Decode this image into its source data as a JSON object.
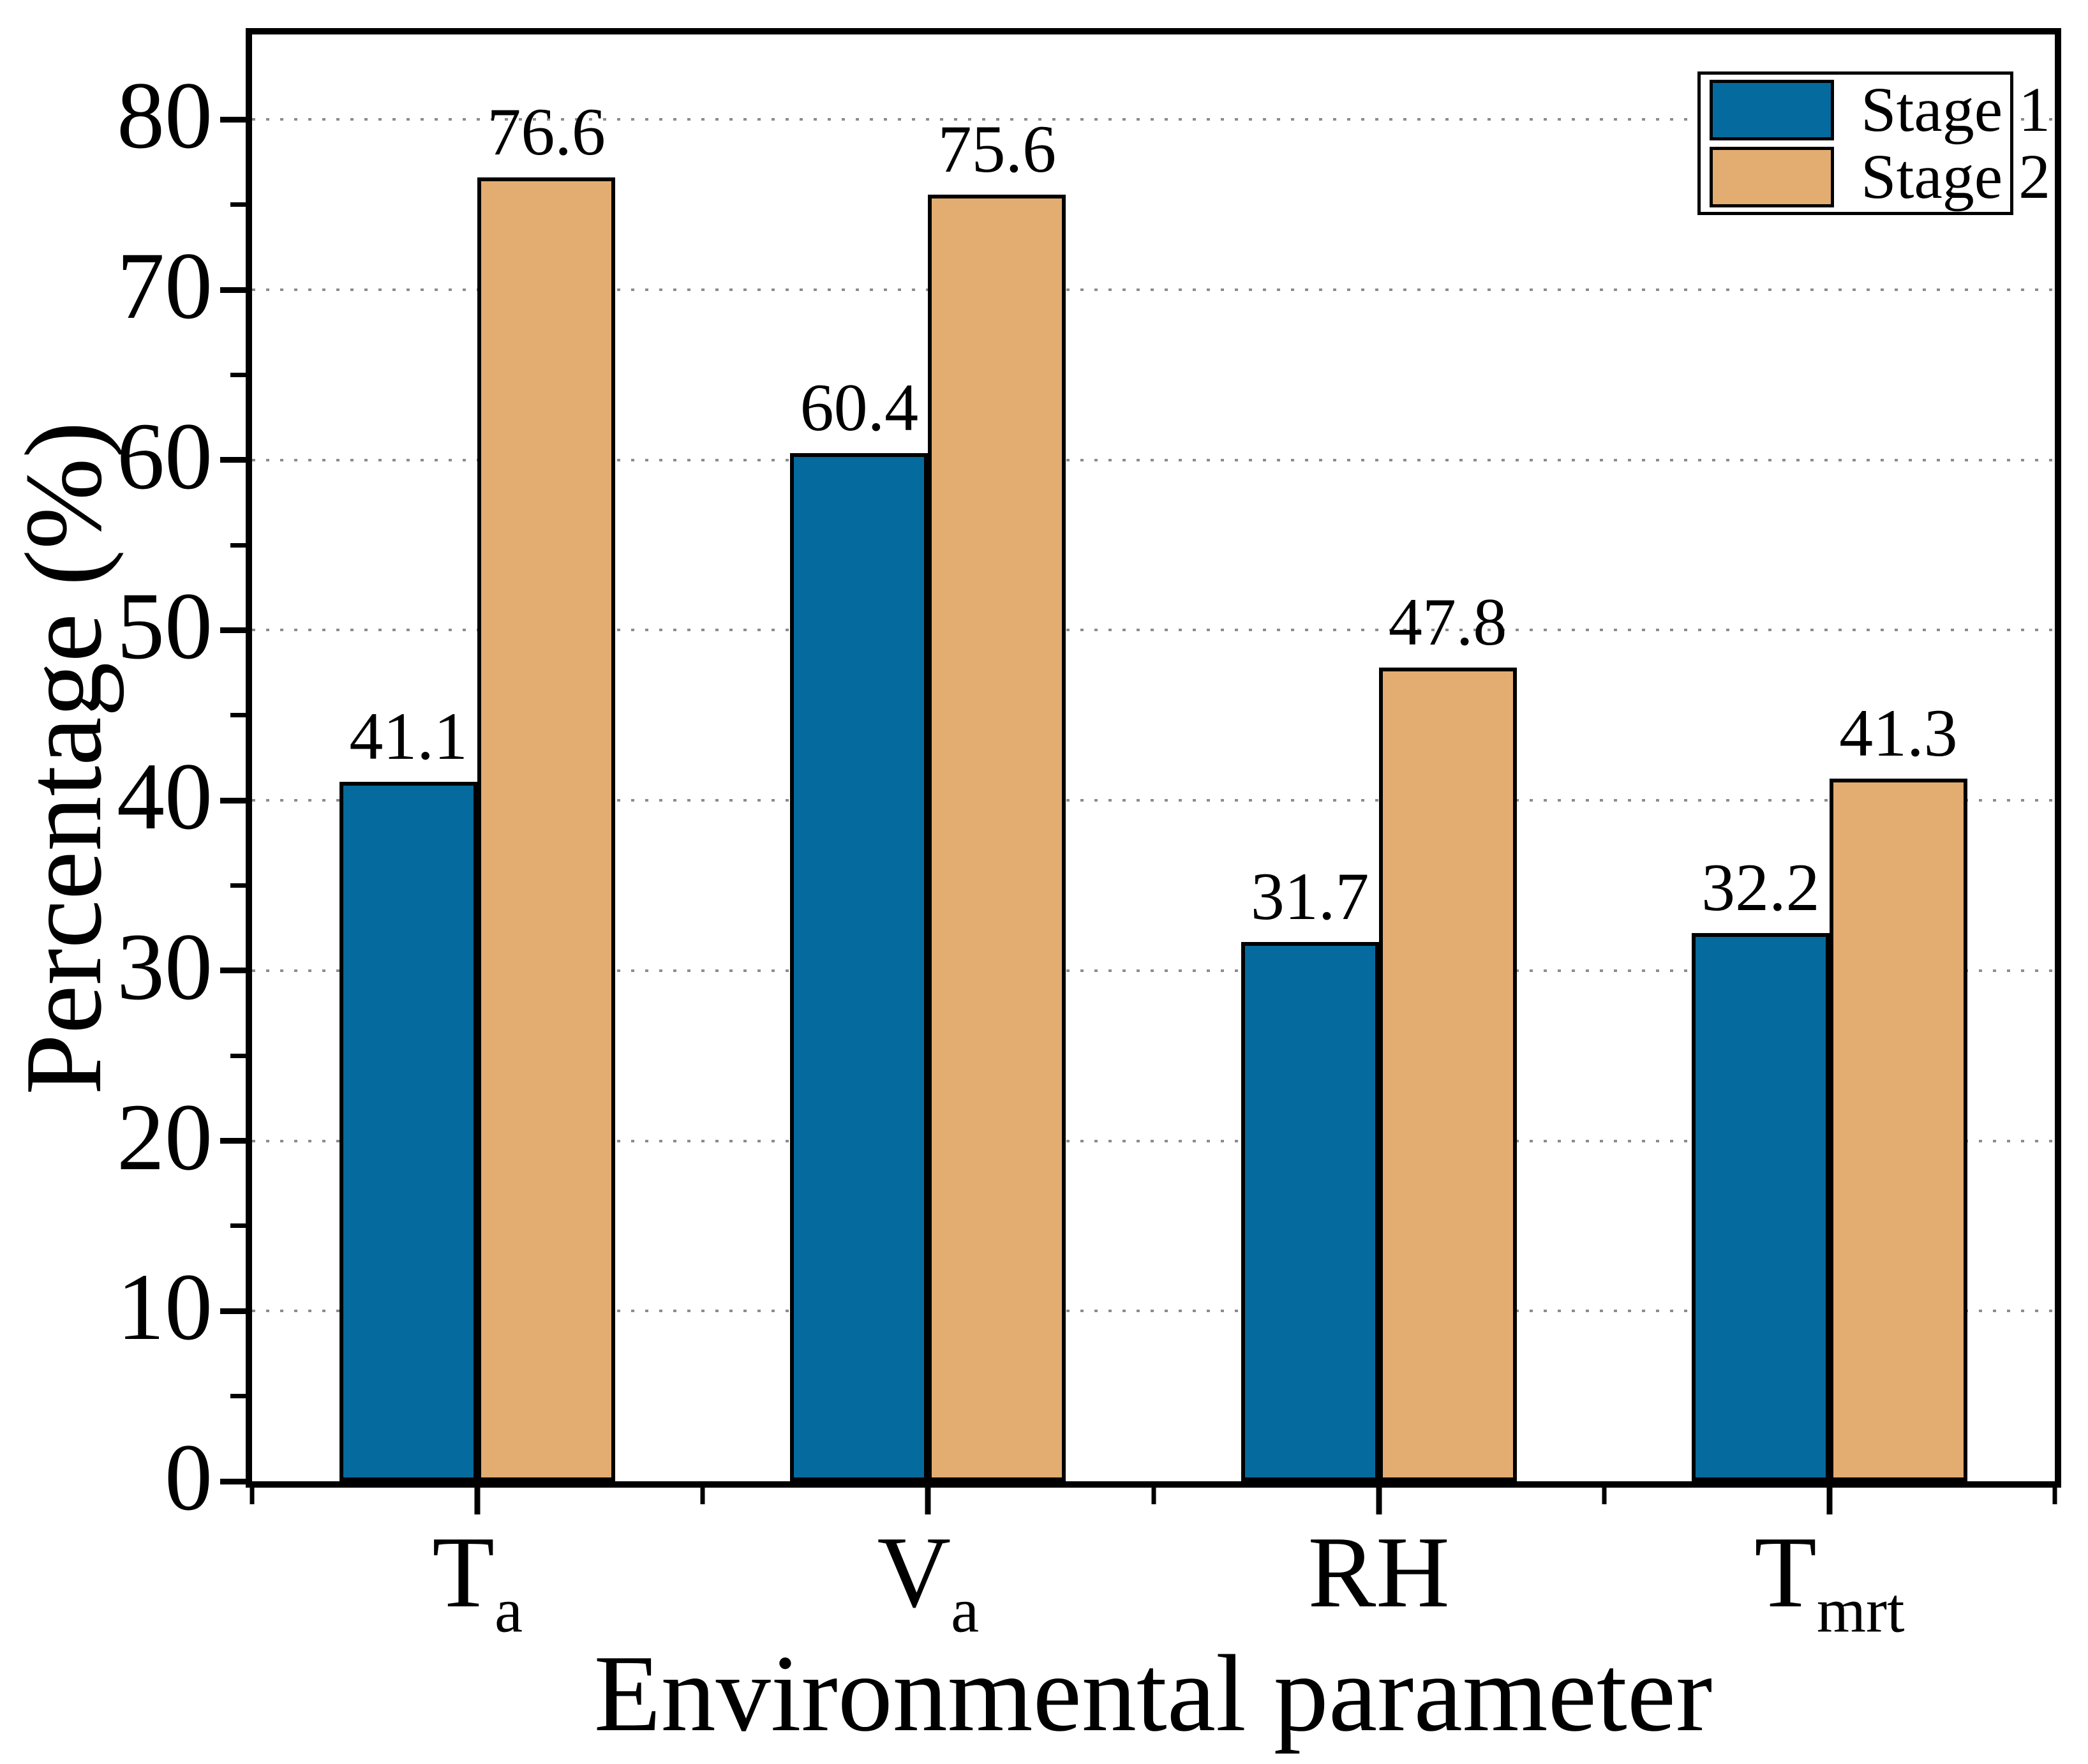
{
  "chart_data": {
    "type": "bar",
    "title": "",
    "xlabel": "Environmental parameter",
    "ylabel": "Percentage (%)",
    "categories": [
      {
        "main": "T",
        "sub": "a"
      },
      {
        "main": "V",
        "sub": "a"
      },
      {
        "main": "RH",
        "sub": ""
      },
      {
        "main": "T",
        "sub": "mrt"
      }
    ],
    "series": [
      {
        "name": "Stage 1",
        "color": "#056a9d",
        "values": [
          41.1,
          60.4,
          31.7,
          32.2
        ]
      },
      {
        "name": "Stage 2",
        "color": "#e3ac70",
        "values": [
          76.6,
          75.6,
          47.8,
          41.3
        ]
      }
    ],
    "bar_value_labels": [
      [
        "41.1",
        "60.4",
        "31.7",
        "32.2"
      ],
      [
        "76.6",
        "75.6",
        "47.8",
        "41.3"
      ]
    ],
    "ylim": [
      0,
      85
    ],
    "yticks_major": [
      0,
      10,
      20,
      30,
      40,
      50,
      60,
      70,
      80
    ],
    "ytick_labels": [
      "0",
      "10",
      "20",
      "30",
      "40",
      "50",
      "60",
      "70",
      "80"
    ],
    "yticks_minor": [
      5,
      15,
      25,
      35,
      45,
      55,
      65,
      75
    ],
    "grid": "horizontal dotted lines at major y ticks",
    "grid_color": "#8c8c8c",
    "frame_color": "#000000",
    "legend_position": "top-right",
    "legend_items": [
      "Stage 1",
      "Stage 2"
    ]
  }
}
